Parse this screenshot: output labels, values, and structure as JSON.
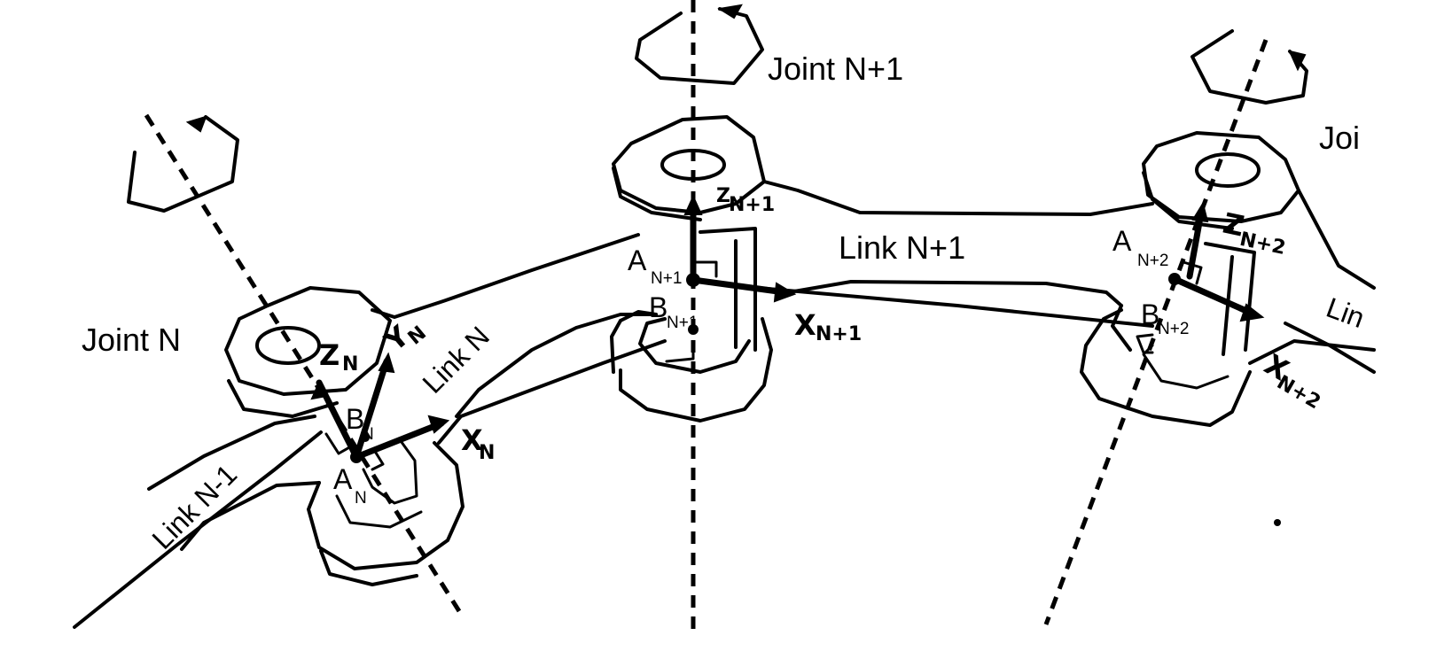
{
  "joints": {
    "joint_n": "Joint N",
    "joint_n1": "Joint N+1",
    "joint_n2": "Joi"
  },
  "links": {
    "link_n_minus_1": "Link N-1",
    "link_n": "Link N",
    "link_n1": "Link N+1",
    "link_n2": "Lin"
  },
  "points": {
    "a": "A",
    "b": "B",
    "sub_n": "N",
    "sub_n1": "N+1",
    "sub_n2": "N+2"
  },
  "axes": {
    "z": "Z",
    "x": "X",
    "y": "Y",
    "z_n1_sub": "N+1",
    "sub_n": "N",
    "sub_n1": "N+1",
    "sub_n2": "N+2"
  }
}
